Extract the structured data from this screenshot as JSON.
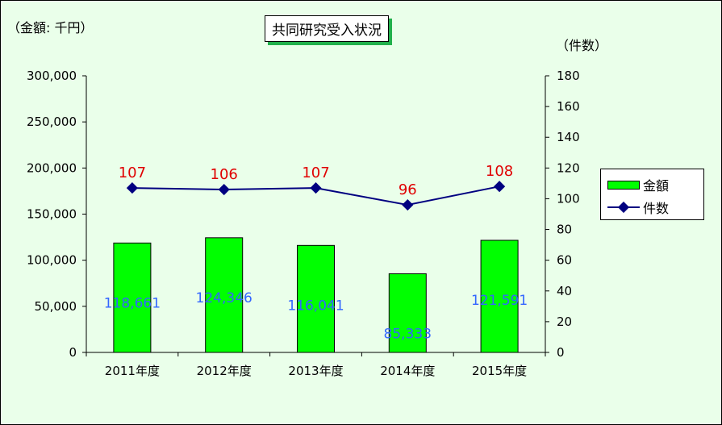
{
  "chart_data": {
    "type": "bar",
    "title": "共同研究受入状況",
    "left_axis_unit": "（金額: 千円）",
    "right_axis_unit": "（件数）",
    "categories": [
      "2011年度",
      "2012年度",
      "2013年度",
      "2014年度",
      "2015年度"
    ],
    "series": [
      {
        "name": "金額",
        "type": "bar",
        "axis": "left",
        "color": "#00ff00",
        "values": [
          118661,
          124346,
          116041,
          85333,
          121591
        ],
        "labels": [
          "118,661",
          "124,346",
          "116,041",
          "85,333",
          "121,591"
        ],
        "label_color": "#3366ff"
      },
      {
        "name": "件数",
        "type": "line",
        "axis": "right",
        "color": "#000080",
        "values": [
          107,
          106,
          107,
          96,
          108
        ],
        "labels": [
          "107",
          "106",
          "107",
          "96",
          "108"
        ],
        "label_color": "#e00000"
      }
    ],
    "ylim_left": [
      0,
      300000
    ],
    "yticks_left": [
      "0",
      "50,000",
      "100,000",
      "150,000",
      "200,000",
      "250,000",
      "300,000"
    ],
    "ylim_right": [
      0,
      180
    ],
    "yticks_right": [
      "0",
      "20",
      "40",
      "60",
      "80",
      "100",
      "120",
      "140",
      "160",
      "180"
    ],
    "grid": false,
    "legend": "right",
    "background": "#eaffea"
  }
}
